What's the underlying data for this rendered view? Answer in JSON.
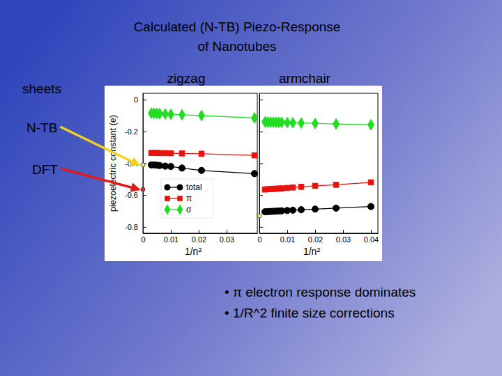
{
  "slide": {
    "title_lines": [
      "Calculated (N-TB) Piezo-Response",
      "of Nanotubes"
    ],
    "sheets_label": "sheets",
    "side_labels": [
      {
        "text": "N-TB",
        "color": "#f2d21a"
      },
      {
        "text": "DFT",
        "color": "#e01b1b"
      }
    ],
    "bullets": [
      "• π electron response dominates",
      "• 1/R^2 finite size corrections"
    ]
  },
  "chart_data": [
    {
      "type": "line",
      "title": "zigzag",
      "x_label": "1/n²",
      "y_label": "piezoelectric constant (e)",
      "x": [
        0.003,
        0.004,
        0.005,
        0.006,
        0.008,
        0.01,
        0.014,
        0.021,
        0.04
      ],
      "series": [
        {
          "name": "total",
          "color": "#000000",
          "marker": "circle",
          "values": [
            -0.41,
            -0.41,
            -0.412,
            -0.414,
            -0.418,
            -0.42,
            -0.43,
            -0.445,
            -0.465
          ]
        },
        {
          "name": "π",
          "color": "#e8120c",
          "marker": "square",
          "values": [
            -0.335,
            -0.335,
            -0.335,
            -0.336,
            -0.336,
            -0.337,
            -0.338,
            -0.34,
            -0.35
          ]
        },
        {
          "name": "σ",
          "color": "#22dd22",
          "marker": "diamond",
          "values": [
            -0.085,
            -0.086,
            -0.087,
            -0.088,
            -0.09,
            -0.092,
            -0.095,
            -0.1,
            -0.115
          ]
        }
      ],
      "sheet": [
        {
          "x": 0,
          "value": -0.41,
          "color": "#f4e87a"
        },
        {
          "x": 0,
          "value": -0.564,
          "color": "#d42a2a"
        }
      ],
      "xlim": [
        0,
        0.041
      ],
      "xticks": [
        0,
        0.01,
        0.02,
        0.03
      ],
      "ylim": [
        -0.84,
        0.04
      ],
      "yticks": [
        0,
        -0.2,
        -0.4,
        -0.6,
        -0.8
      ],
      "legend": "lower left"
    },
    {
      "type": "line",
      "title": "armchair",
      "x_label": "1/n²",
      "x": [
        0.002,
        0.003,
        0.004,
        0.005,
        0.006,
        0.007,
        0.008,
        0.01,
        0.012,
        0.015,
        0.02,
        0.0275,
        0.04
      ],
      "series": [
        {
          "color": "#000000",
          "marker": "circle",
          "values": [
            -0.705,
            -0.704,
            -0.703,
            -0.702,
            -0.701,
            -0.7,
            -0.699,
            -0.697,
            -0.695,
            -0.692,
            -0.688,
            -0.682,
            -0.672
          ]
        },
        {
          "color": "#e8120c",
          "marker": "square",
          "values": [
            -0.565,
            -0.563,
            -0.562,
            -0.561,
            -0.56,
            -0.559,
            -0.558,
            -0.555,
            -0.552,
            -0.548,
            -0.542,
            -0.535,
            -0.52
          ]
        },
        {
          "color": "#22dd22",
          "marker": "diamond",
          "values": [
            -0.14,
            -0.141,
            -0.141,
            -0.142,
            -0.142,
            -0.143,
            -0.143,
            -0.144,
            -0.145,
            -0.147,
            -0.149,
            -0.153,
            -0.158
          ]
        }
      ],
      "sheet": [
        {
          "x": 0,
          "value": -0.73,
          "color": "#f4e87a"
        }
      ],
      "xlim": [
        0,
        0.0425
      ],
      "xticks": [
        0,
        0.01,
        0.02,
        0.03,
        0.04
      ],
      "ylim": [
        -0.84,
        0.04
      ],
      "yticks": [
        0,
        -0.2,
        -0.4,
        -0.6,
        -0.8
      ],
      "tick_labels": "x"
    }
  ]
}
